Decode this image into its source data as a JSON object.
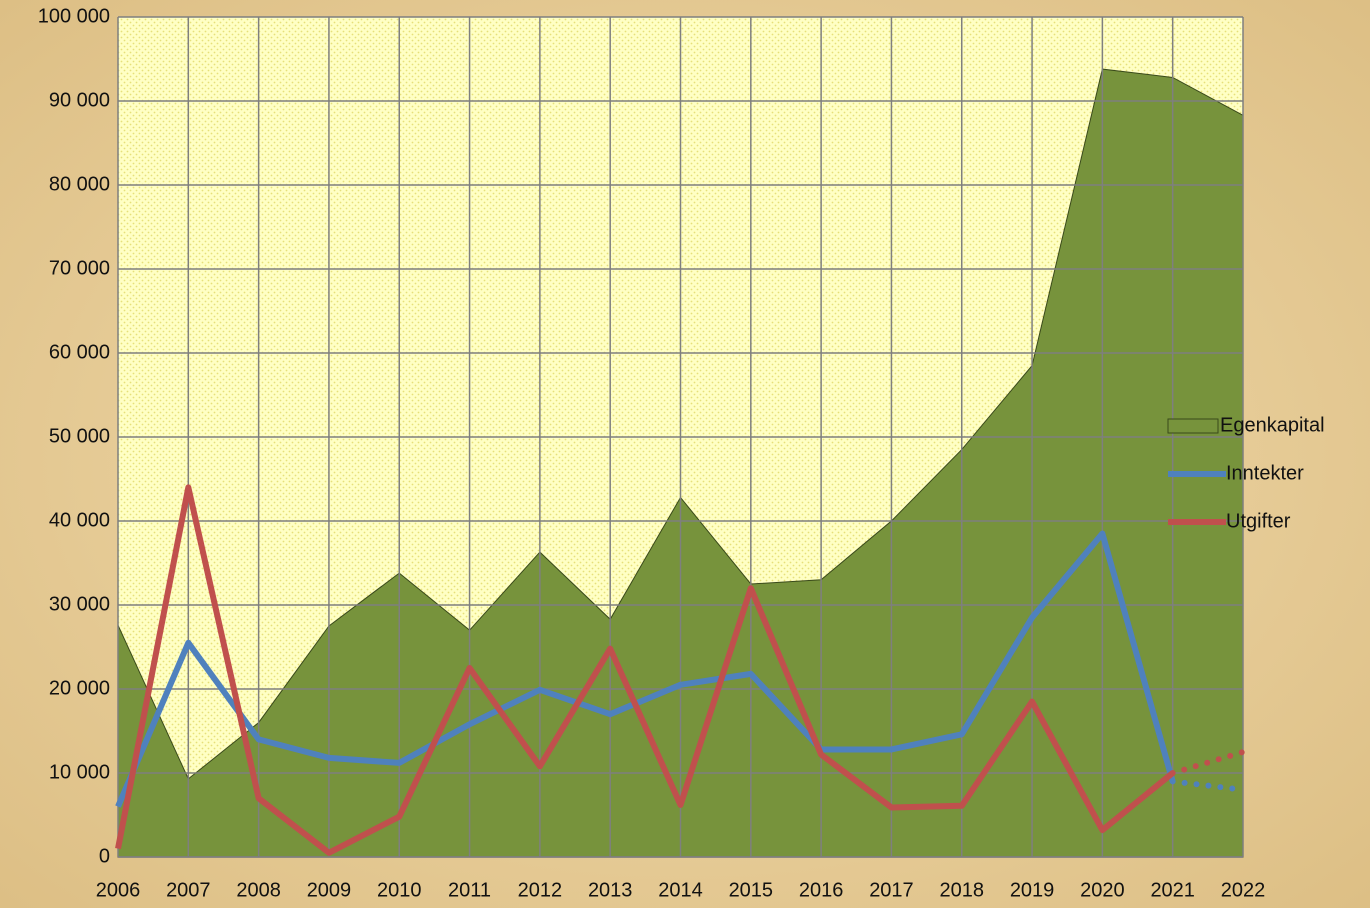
{
  "chart_data": {
    "type": "line",
    "categories": [
      "2006",
      "2007",
      "2008",
      "2009",
      "2010",
      "2011",
      "2012",
      "2013",
      "2014",
      "2015",
      "2016",
      "2017",
      "2018",
      "2019",
      "2020",
      "2021",
      "2022"
    ],
    "series": [
      {
        "name": "Egenkapital",
        "kind": "area",
        "color": "#77933c",
        "values": [
          27600,
          9300,
          16000,
          27500,
          33800,
          27000,
          36300,
          28300,
          42800,
          32500,
          33000,
          40000,
          48500,
          58500,
          93800,
          92800,
          88300
        ]
      },
      {
        "name": "Inntekter",
        "kind": "line",
        "color": "#4f81bd",
        "values": [
          6000,
          25500,
          14000,
          11800,
          11200,
          15800,
          19900,
          17000,
          20500,
          21800,
          12800,
          12800,
          14600,
          28500,
          38500,
          9000,
          8000
        ]
      },
      {
        "name": "Utgifter",
        "kind": "line",
        "color": "#c0504d",
        "values": [
          1000,
          44000,
          7000,
          500,
          4800,
          22500,
          10800,
          24800,
          6200,
          32000,
          12200,
          5900,
          6100,
          18500,
          3200,
          10000,
          12500
        ]
      }
    ],
    "dotted_from": 15,
    "ylim": [
      0,
      100000
    ],
    "yticks": [
      0,
      {
        "value": 10000,
        "label": "10 000"
      },
      {
        "value": 20000,
        "label": "20 000"
      },
      {
        "value": 30000,
        "label": "30 000"
      },
      {
        "value": 40000,
        "label": "40 000"
      },
      {
        "value": 50000,
        "label": "50 000"
      },
      {
        "value": 60000,
        "label": "60 000"
      },
      {
        "value": 70000,
        "label": "70 000"
      },
      {
        "value": 80000,
        "label": "80 000"
      },
      {
        "value": 90000,
        "label": "90 000"
      },
      {
        "value": 100000,
        "label": "100 000"
      }
    ],
    "grid": true,
    "legend": "right"
  }
}
